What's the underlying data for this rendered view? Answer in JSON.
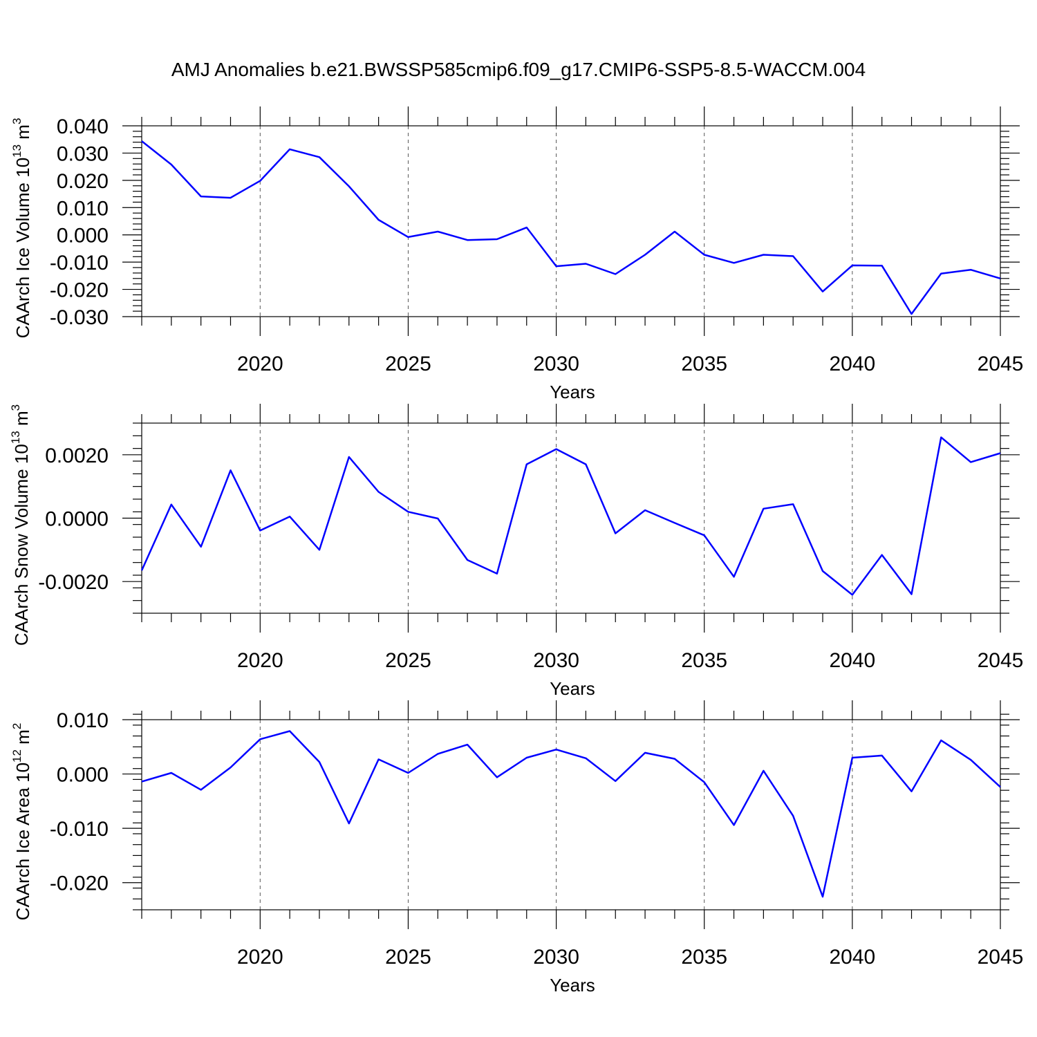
{
  "figure": {
    "title": "AMJ Anomalies b.e21.BWSSP585cmip6.f09_g17.CMIP6-SSP5-8.5-WACCM.004",
    "line_color": "#0000ff"
  },
  "chart_data": [
    {
      "type": "line",
      "xlabel": "Years",
      "ylabel": "CAArch Ice Volume",
      "ylabel_unit": "10",
      "ylabel_unit_exp": "13",
      "ylabel_unit_rest": " m",
      "ylabel_unit_rest_exp": "3",
      "xlim": [
        2016,
        2045
      ],
      "ylim": [
        -0.03,
        0.04
      ],
      "grid": "x-dashed",
      "x_ticks": [
        2020,
        2025,
        2030,
        2035,
        2040,
        2045
      ],
      "y_ticks": [
        -0.03,
        -0.02,
        -0.01,
        0.0,
        0.01,
        0.02,
        0.03,
        0.04
      ],
      "y_tick_labels": [
        "-0.030",
        "-0.020",
        "-0.010",
        "0.000",
        "0.010",
        "0.020",
        "0.030",
        "0.040"
      ],
      "x": [
        2016,
        2017,
        2018,
        2019,
        2020,
        2021,
        2022,
        2023,
        2024,
        2025,
        2026,
        2027,
        2028,
        2029,
        2030,
        2031,
        2032,
        2033,
        2034,
        2035,
        2036,
        2037,
        2038,
        2039,
        2040,
        2041,
        2042,
        2043,
        2044,
        2045
      ],
      "values": [
        0.0344,
        0.0258,
        0.0141,
        0.0136,
        0.0198,
        0.0314,
        0.0285,
        0.0178,
        0.0055,
        -0.0008,
        0.0012,
        -0.0019,
        -0.0016,
        0.0027,
        -0.0115,
        -0.0106,
        -0.0144,
        -0.0073,
        0.0012,
        -0.0073,
        -0.0103,
        -0.0073,
        -0.0078,
        -0.0208,
        -0.0112,
        -0.0113,
        -0.029,
        -0.0142,
        -0.0128,
        -0.016
      ]
    },
    {
      "type": "line",
      "xlabel": "Years",
      "ylabel": "CAArch Snow Volume",
      "ylabel_unit": "10",
      "ylabel_unit_exp": "13",
      "ylabel_unit_rest": " m",
      "ylabel_unit_rest_exp": "3",
      "xlim": [
        2016,
        2045
      ],
      "ylim": [
        -0.003,
        0.003
      ],
      "grid": "x-dashed",
      "x_ticks": [
        2020,
        2025,
        2030,
        2035,
        2040,
        2045
      ],
      "y_ticks": [
        -0.002,
        0.0,
        0.002
      ],
      "y_tick_labels": [
        "-0.0020",
        "0.0000",
        "0.0020"
      ],
      "x": [
        2016,
        2017,
        2018,
        2019,
        2020,
        2021,
        2022,
        2023,
        2024,
        2025,
        2026,
        2027,
        2028,
        2029,
        2030,
        2031,
        2032,
        2033,
        2034,
        2035,
        2036,
        2037,
        2038,
        2039,
        2040,
        2041,
        2042,
        2043,
        2044,
        2045
      ],
      "values": [
        -0.00165,
        0.00043,
        -0.0009,
        0.00151,
        -0.00039,
        5e-05,
        -0.001,
        0.00193,
        0.00083,
        0.0002,
        -1e-05,
        -0.00132,
        -0.00175,
        0.0017,
        0.00218,
        0.0017,
        -0.00048,
        0.00025,
        -0.00015,
        -0.00054,
        -0.00185,
        0.0003,
        0.00044,
        -0.00167,
        -0.00242,
        -0.00116,
        -0.0024,
        0.00255,
        0.00177,
        0.00205
      ]
    },
    {
      "type": "line",
      "xlabel": "Years",
      "ylabel": "CAArch Ice Area",
      "ylabel_unit": "10",
      "ylabel_unit_exp": "12",
      "ylabel_unit_rest": " m",
      "ylabel_unit_rest_exp": "2",
      "xlim": [
        2016,
        2045
      ],
      "ylim": [
        -0.025,
        0.01
      ],
      "grid": "x-dashed",
      "x_ticks": [
        2020,
        2025,
        2030,
        2035,
        2040,
        2045
      ],
      "y_ticks": [
        -0.02,
        -0.01,
        0.0,
        0.01
      ],
      "y_tick_labels": [
        "-0.020",
        "-0.010",
        "0.000",
        "0.010"
      ],
      "x": [
        2016,
        2017,
        2018,
        2019,
        2020,
        2021,
        2022,
        2023,
        2024,
        2025,
        2026,
        2027,
        2028,
        2029,
        2030,
        2031,
        2032,
        2033,
        2034,
        2035,
        2036,
        2037,
        2038,
        2039,
        2040,
        2041,
        2042,
        2043,
        2044,
        2045
      ],
      "values": [
        -0.0014,
        0.0002,
        -0.0029,
        0.0012,
        0.0064,
        0.0079,
        0.0022,
        -0.0091,
        0.0027,
        0.0002,
        0.0037,
        0.0054,
        -0.0006,
        0.003,
        0.0045,
        0.0029,
        -0.0013,
        0.0039,
        0.0028,
        -0.0015,
        -0.0094,
        0.0006,
        -0.0077,
        -0.0226,
        0.003,
        0.0034,
        -0.0032,
        0.0062,
        0.0026,
        -0.0024
      ]
    }
  ]
}
